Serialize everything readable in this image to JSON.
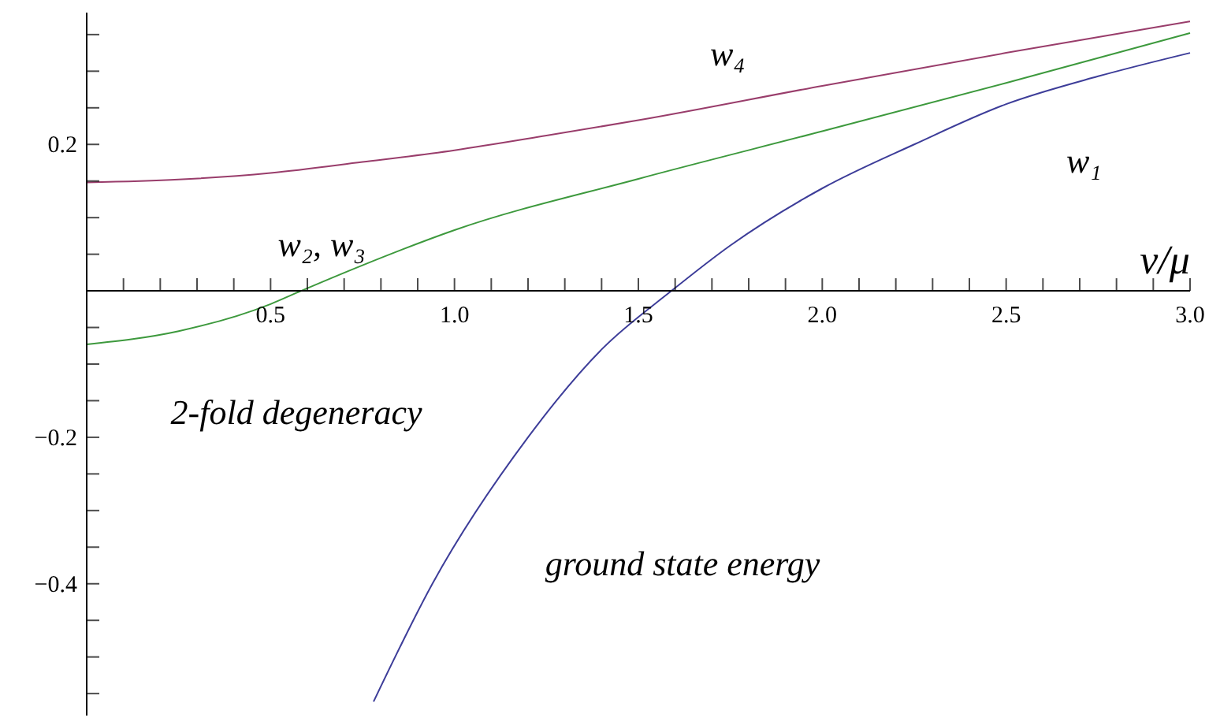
{
  "chart_data": {
    "type": "line",
    "xlabel": "ν/μ",
    "xlim": [
      0,
      3.0
    ],
    "ylim": [
      -0.58,
      0.38
    ],
    "xticks": [
      {
        "value": 0.1,
        "label": null
      },
      {
        "value": 0.2,
        "label": null
      },
      {
        "value": 0.3,
        "label": null
      },
      {
        "value": 0.4,
        "label": null
      },
      0.5,
      {
        "value": 0.6,
        "label": null
      },
      {
        "value": 0.7,
        "label": null
      },
      {
        "value": 0.8,
        "label": null
      },
      {
        "value": 0.9,
        "label": null
      },
      {
        "value": 1.0,
        "label": "1.0"
      },
      {
        "value": 1.1,
        "label": null
      },
      {
        "value": 1.2,
        "label": null
      },
      {
        "value": 1.3,
        "label": null
      },
      {
        "value": 1.4,
        "label": null
      },
      1.5,
      {
        "value": 1.6,
        "label": null
      },
      {
        "value": 1.7,
        "label": null
      },
      {
        "value": 1.8,
        "label": null
      },
      {
        "value": 1.9,
        "label": null
      },
      {
        "value": 2.0,
        "label": "2.0"
      },
      {
        "value": 2.1,
        "label": null
      },
      {
        "value": 2.2,
        "label": null
      },
      {
        "value": 2.3,
        "label": null
      },
      {
        "value": 2.4,
        "label": null
      },
      2.5,
      {
        "value": 2.6,
        "label": null
      },
      {
        "value": 2.7,
        "label": null
      },
      {
        "value": 2.8,
        "label": null
      },
      {
        "value": 2.9,
        "label": null
      },
      {
        "value": 3.0,
        "label": "3.0"
      }
    ],
    "yticks": [
      {
        "value": -0.55,
        "label": null
      },
      {
        "value": -0.5,
        "label": null
      },
      {
        "value": -0.45,
        "label": null
      },
      {
        "value": -0.4,
        "label": "−0.4"
      },
      {
        "value": -0.35,
        "label": null
      },
      {
        "value": -0.3,
        "label": null
      },
      {
        "value": -0.25,
        "label": null
      },
      {
        "value": -0.2,
        "label": "−0.2"
      },
      {
        "value": -0.15,
        "label": null
      },
      {
        "value": -0.1,
        "label": null
      },
      {
        "value": -0.05,
        "label": null
      },
      {
        "value": 0.05,
        "label": null
      },
      {
        "value": 0.1,
        "label": null
      },
      {
        "value": 0.15,
        "label": null
      },
      0.2,
      {
        "value": 0.25,
        "label": null
      },
      {
        "value": 0.3,
        "label": null
      },
      {
        "value": 0.35,
        "label": null
      }
    ],
    "grid": false,
    "marker": "none",
    "line_style": "solid",
    "series": [
      {
        "name": "w₄",
        "color": "#993d6b",
        "x": [
          0,
          0.25,
          0.5,
          0.75,
          1.0,
          1.25,
          1.5,
          2.0,
          2.5,
          3.0
        ],
        "values": [
          0.148,
          0.152,
          0.161,
          0.176,
          0.192,
          0.212,
          0.233,
          0.28,
          0.325,
          0.368
        ]
      },
      {
        "name": "w₂, w₃",
        "color": "#3d993d",
        "x": [
          0,
          0.25,
          0.5,
          0.583,
          0.75,
          1.0,
          1.5,
          2.0,
          2.5,
          3.0
        ],
        "values": [
          -0.073,
          -0.055,
          -0.018,
          0,
          0.035,
          0.083,
          0.153,
          0.218,
          0.284,
          0.352
        ]
      },
      {
        "name": "w₁",
        "color": "#3d3d99",
        "x": [
          0.78,
          0.94,
          1.2,
          1.4,
          1.59,
          1.75,
          2.0,
          2.25,
          2.5,
          2.75,
          3.0
        ],
        "values": [
          -0.561,
          -0.4,
          -0.2,
          -0.08,
          0,
          0.062,
          0.14,
          0.2,
          0.255,
          0.293,
          0.325
        ]
      }
    ],
    "annotations": [
      "2-fold degeneracy",
      "ground state energy"
    ]
  }
}
